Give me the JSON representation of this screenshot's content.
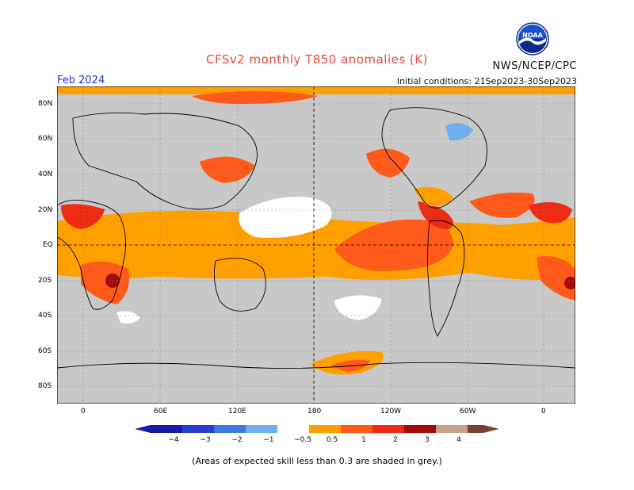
{
  "header": {
    "title": "CFSv2 monthly T850 anomalies (K)",
    "agency": "NWS/NCEP/CPC",
    "month": "Feb 2024",
    "initial_conditions": "Initial conditions: 21Sep2023-30Sep2023",
    "logo_text": "NOAA"
  },
  "axes": {
    "lat_labels": [
      "80N",
      "60N",
      "40N",
      "20N",
      "EQ",
      "20S",
      "40S",
      "60S",
      "80S"
    ],
    "lon_labels": [
      "0",
      "60E",
      "120E",
      "180",
      "120W",
      "60W",
      "0"
    ]
  },
  "legend": {
    "ticks": [
      "−4",
      "−3",
      "−2",
      "−1",
      "−0.5",
      "0.5",
      "1",
      "2",
      "3",
      "4"
    ],
    "colors": {
      "neg4": "#1a1aa8",
      "neg3": "#2a3fd0",
      "neg2": "#3d7be0",
      "neg1": "#6fb0f0",
      "neutral": "#ffffff",
      "pos05": "#ffa000",
      "pos1": "#ff5a1a",
      "pos2": "#ee2a12",
      "pos3": "#a30c0c",
      "pos4": "#c8a090",
      "pos5": "#7a4030",
      "skill_mask": "#c8c8c8"
    }
  },
  "footnote": "(Areas of expected skill less than 0.3 are shaded in grey.)"
}
